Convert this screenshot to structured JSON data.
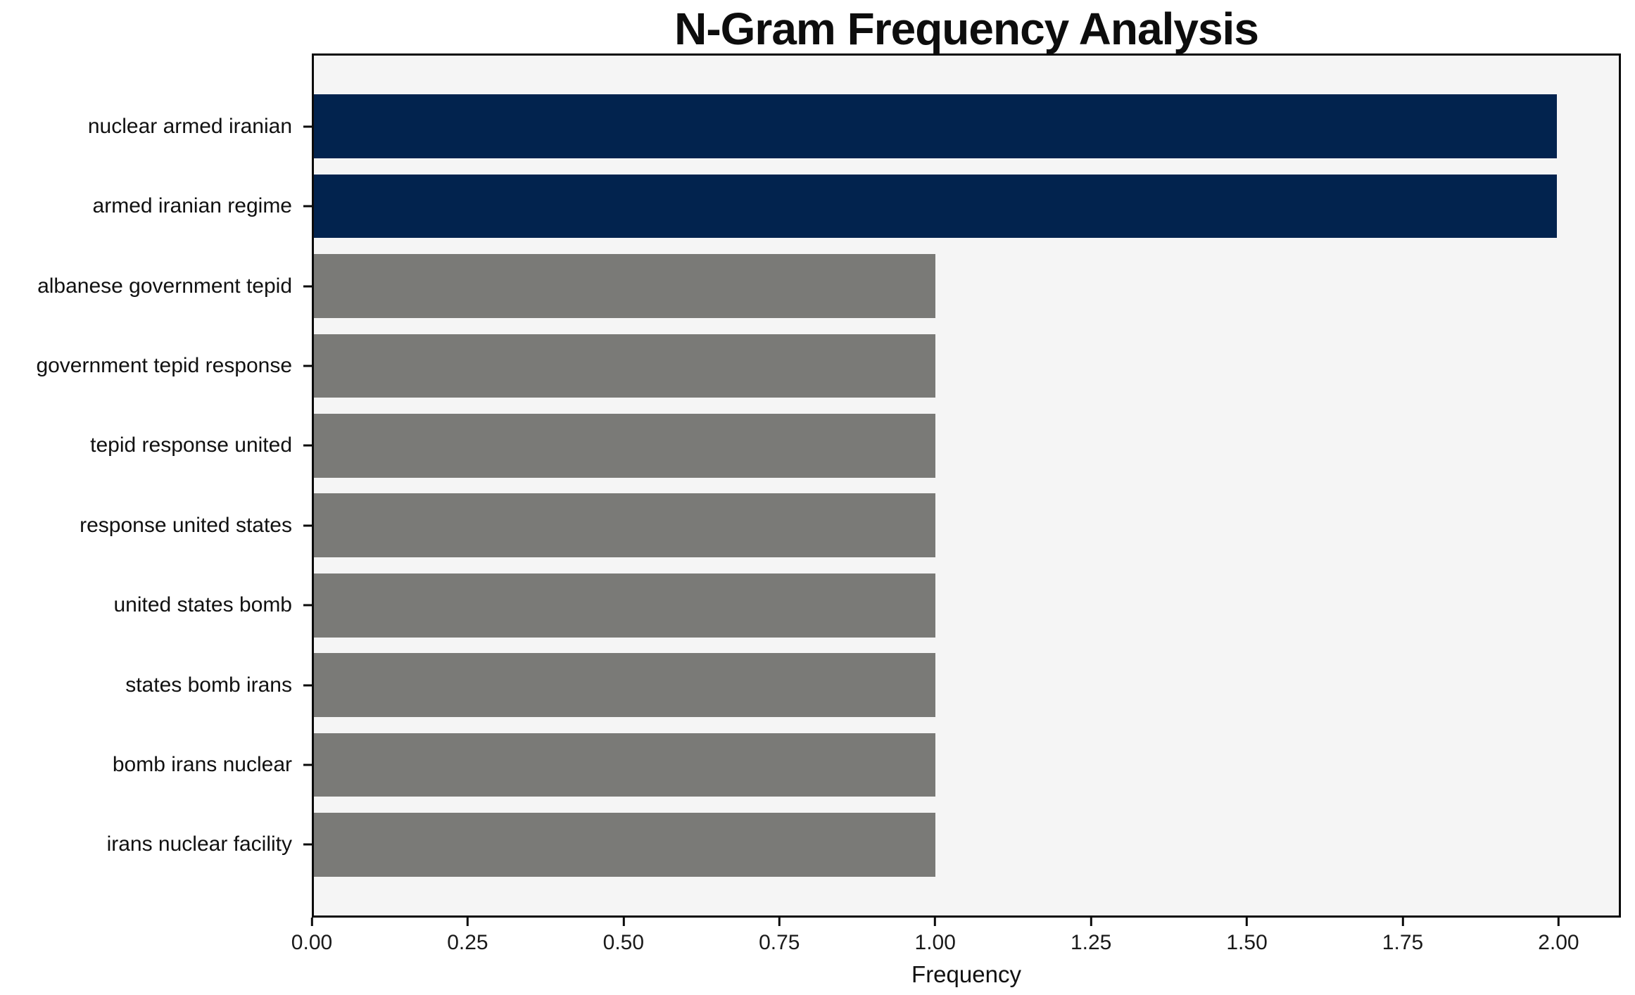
{
  "chart_data": {
    "type": "bar",
    "orientation": "horizontal",
    "title": "N-Gram Frequency Analysis",
    "xlabel": "Frequency",
    "ylabel": "",
    "categories": [
      "nuclear armed iranian",
      "armed iranian regime",
      "albanese government tepid",
      "government tepid response",
      "tepid response united",
      "response united states",
      "united states bomb",
      "states bomb irans",
      "bomb irans nuclear",
      "irans nuclear facility"
    ],
    "values": [
      2,
      2,
      1,
      1,
      1,
      1,
      1,
      1,
      1,
      1
    ],
    "colors": [
      "#02234E",
      "#02234E",
      "#7A7A77",
      "#7A7A77",
      "#7A7A77",
      "#7A7A77",
      "#7A7A77",
      "#7A7A77",
      "#7A7A77",
      "#7A7A77"
    ],
    "highlight_color": "#02234E",
    "default_color": "#7A7A77",
    "xlim": [
      0,
      2.1
    ],
    "xticks": [
      0,
      0.25,
      0.5,
      0.75,
      1.0,
      1.25,
      1.5,
      1.75,
      2.0
    ],
    "xtick_labels": [
      "0.00",
      "0.25",
      "0.50",
      "0.75",
      "1.00",
      "1.25",
      "1.50",
      "1.75",
      "2.00"
    ],
    "grid": false,
    "legend": "none",
    "plot_background": "#F5F5F5",
    "figure_background": "#FFFFFF",
    "spine_color": "#0B0B0B"
  }
}
